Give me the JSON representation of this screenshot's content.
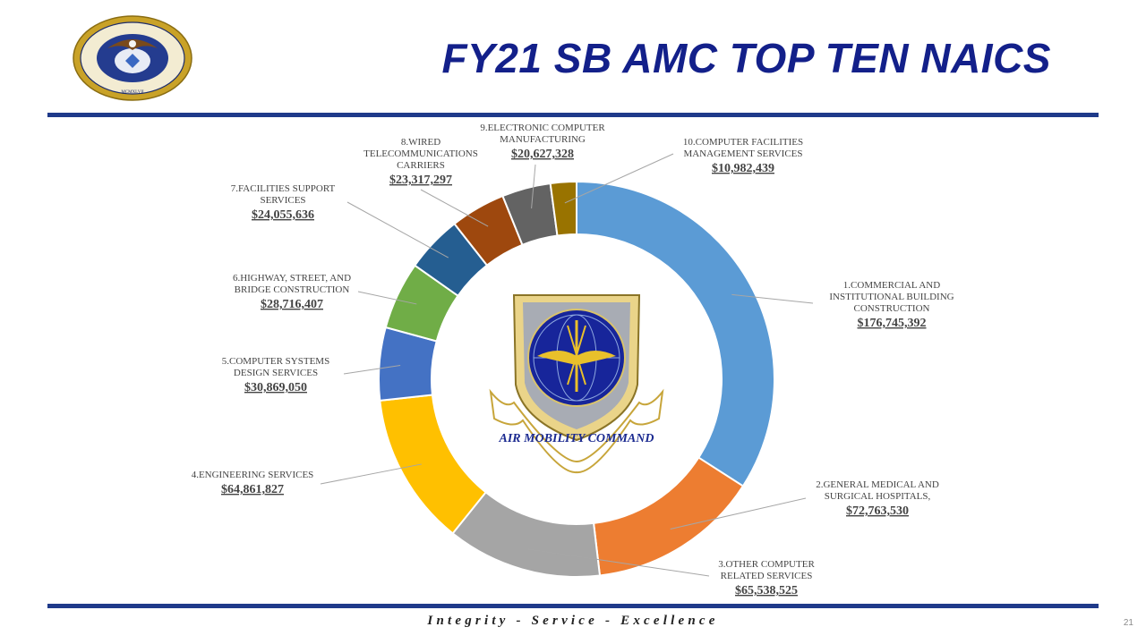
{
  "header": {
    "title": "FY21 SB AMC TOP TEN NAICS"
  },
  "footer": {
    "motto": "Integrity - Service - Excellence",
    "page_number": "21"
  },
  "logos": {
    "air_force_seal": "department-of-the-air-force-seal",
    "amc_emblem": "air-mobility-command-emblem",
    "amc_emblem_text": "AIR MOBILITY COMMAND"
  },
  "chart_data": {
    "type": "pie",
    "subtype": "doughnut",
    "categories": [
      "1.COMMERCIAL AND INSTITUTIONAL BUILDING CONSTRUCTION",
      "2.GENERAL MEDICAL AND SURGICAL HOSPITALS,",
      "3.OTHER COMPUTER RELATED SERVICES",
      "4.ENGINEERING SERVICES",
      "5.COMPUTER SYSTEMS DESIGN SERVICES",
      "6.HIGHWAY, STREET, AND BRIDGE CONSTRUCTION",
      "7.FACILITIES SUPPORT SERVICES",
      "8.WIRED TELECOMMUNICATIONS CARRIERS",
      "9.ELECTRONIC COMPUTER MANUFACTURING",
      "10.COMPUTER FACILITIES MANAGEMENT SERVICES"
    ],
    "values": [
      176745392,
      72763530,
      65538525,
      64861827,
      30869050,
      28716407,
      24055636,
      23317297,
      20627328,
      10982439
    ],
    "value_labels": [
      "$176,745,392",
      "$72,763,530",
      "$65,538,525",
      "$64,861,827",
      "$30,869,050",
      "$28,716,407",
      "$24,055,636",
      "$23,317,297",
      "$20,627,328",
      "$10,982,439"
    ],
    "label_lines": [
      [
        "1.COMMERCIAL AND",
        "INSTITUTIONAL BUILDING",
        "CONSTRUCTION"
      ],
      [
        "2.GENERAL MEDICAL AND",
        "SURGICAL HOSPITALS,"
      ],
      [
        "3.OTHER COMPUTER",
        "RELATED SERVICES"
      ],
      [
        "4.ENGINEERING SERVICES"
      ],
      [
        "5.COMPUTER SYSTEMS",
        "DESIGN SERVICES"
      ],
      [
        "6.HIGHWAY, STREET, AND",
        "BRIDGE CONSTRUCTION"
      ],
      [
        "7.FACILITIES SUPPORT",
        "SERVICES"
      ],
      [
        "8.WIRED",
        "TELECOMMUNICATIONS",
        "CARRIERS"
      ],
      [
        "9.ELECTRONIC COMPUTER",
        "MANUFACTURING"
      ],
      [
        "10.COMPUTER FACILITIES",
        "MANAGEMENT SERVICES"
      ]
    ],
    "colors": [
      "#5b9bd5",
      "#ed7d31",
      "#a5a5a5",
      "#ffc000",
      "#4472c4",
      "#70ad47",
      "#255e91",
      "#9e480e",
      "#636363",
      "#997300"
    ],
    "start_angle_deg": 0,
    "direction": "clockwise",
    "legend": "none",
    "data_labels": "outside-with-leader-lines",
    "title": ""
  }
}
